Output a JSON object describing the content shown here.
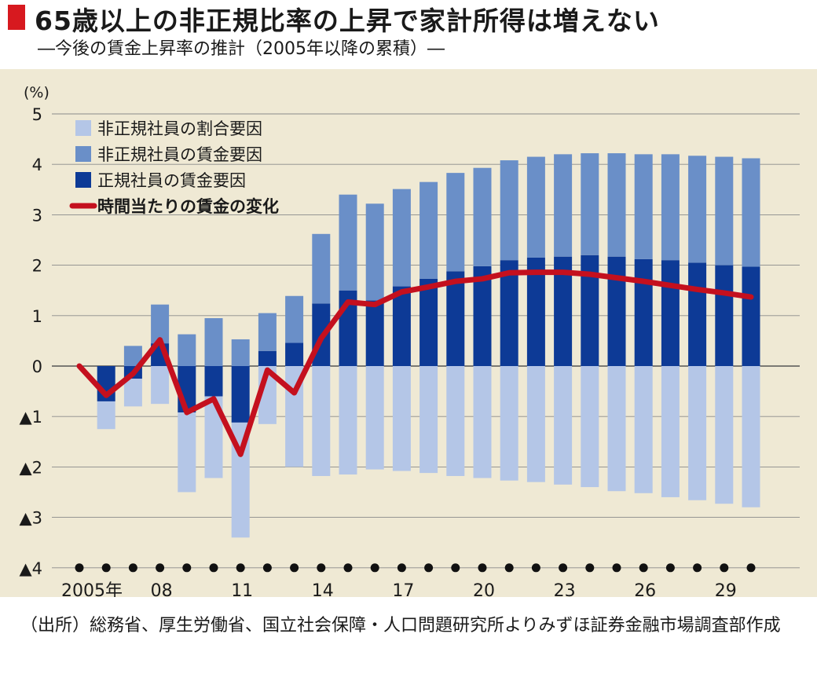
{
  "title": "65歳以上の非正規比率の上昇で家計所得は増えない",
  "subtitle": "―今後の賃金上昇率の推計（2005年以降の累積）―",
  "source_note": "（出所）総務省、厚生労働省、国立社会保障・人口問題研究所よりみずほ証券金融市場調査部作成",
  "colors": {
    "title_marker": "#d7191f",
    "panel_bg": "#efe9d4",
    "share_factor": "#b4c6e7",
    "nonreg_wage": "#6a8fc8",
    "reg_wage": "#0d3a96",
    "hourly_line": "#c4101e"
  },
  "chart_data": {
    "type": "bar+line",
    "unit_label": "(%)",
    "ylim": [
      -4,
      5
    ],
    "y_ticks": [
      5,
      4,
      3,
      2,
      1,
      0,
      -1,
      -2,
      -3,
      -4
    ],
    "y_tick_labels": [
      "5",
      "4",
      "3",
      "2",
      "1",
      "0",
      "▲1",
      "▲2",
      "▲3",
      "▲4"
    ],
    "x": [
      2005,
      2006,
      2007,
      2008,
      2009,
      2010,
      2011,
      2012,
      2013,
      2014,
      2015,
      2016,
      2017,
      2018,
      2019,
      2020,
      2021,
      2022,
      2023,
      2024,
      2025,
      2026,
      2027,
      2028,
      2029,
      2030
    ],
    "x_tick_labels": [
      {
        "x": 2005,
        "label": "2005年"
      },
      {
        "x": 2008,
        "label": "08"
      },
      {
        "x": 2011,
        "label": "11"
      },
      {
        "x": 2014,
        "label": "14"
      },
      {
        "x": 2017,
        "label": "17"
      },
      {
        "x": 2020,
        "label": "20"
      },
      {
        "x": 2023,
        "label": "23"
      },
      {
        "x": 2026,
        "label": "26"
      },
      {
        "x": 2029,
        "label": "29"
      }
    ],
    "series": [
      {
        "name": "非正規社員の割合要因",
        "kind": "bar",
        "color": "#b4c6e7",
        "values": [
          0,
          -0.55,
          -0.55,
          -0.75,
          -1.58,
          -1.62,
          -2.28,
          -1.15,
          -2.0,
          -2.18,
          -2.15,
          -2.05,
          -2.08,
          -2.12,
          -2.18,
          -2.22,
          -2.27,
          -2.3,
          -2.35,
          -2.4,
          -2.48,
          -2.52,
          -2.6,
          -2.66,
          -2.73,
          -2.8
        ]
      },
      {
        "name": "非正規社員の賃金要因",
        "kind": "bar",
        "color": "#6a8fc8",
        "values": [
          0,
          0,
          0.4,
          0.77,
          0.63,
          0.95,
          0.53,
          0.75,
          0.93,
          1.38,
          1.9,
          1.92,
          1.93,
          1.92,
          1.95,
          1.95,
          1.98,
          2.0,
          2.03,
          2.02,
          2.05,
          2.08,
          2.1,
          2.12,
          2.15,
          2.15
        ]
      },
      {
        "name": "正規社員の賃金要因",
        "kind": "bar",
        "color": "#0d3a96",
        "values": [
          0,
          -0.7,
          -0.25,
          0.45,
          -0.92,
          -0.6,
          -1.12,
          0.3,
          0.46,
          1.24,
          1.5,
          1.3,
          1.58,
          1.73,
          1.88,
          1.98,
          2.1,
          2.15,
          2.17,
          2.2,
          2.17,
          2.12,
          2.1,
          2.05,
          2.0,
          1.97
        ]
      },
      {
        "name": "時間当たりの賃金の変化",
        "kind": "line",
        "color": "#c4101e",
        "values": [
          0,
          -0.58,
          -0.15,
          0.52,
          -0.92,
          -0.65,
          -1.75,
          -0.08,
          -0.53,
          0.55,
          1.27,
          1.22,
          1.47,
          1.57,
          1.68,
          1.73,
          1.85,
          1.86,
          1.86,
          1.82,
          1.75,
          1.68,
          1.6,
          1.52,
          1.45,
          1.37
        ]
      }
    ],
    "grid": true,
    "legend_position": "top-left"
  }
}
